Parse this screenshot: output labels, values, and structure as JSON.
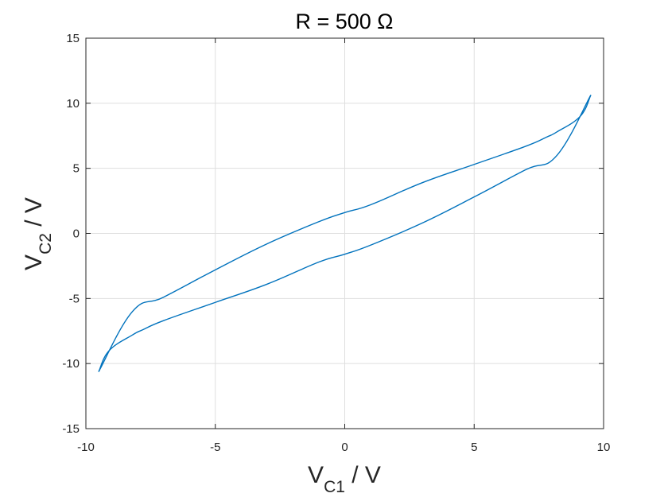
{
  "chart_data": {
    "type": "line",
    "title": "R = 500 Ω",
    "xlabel": {
      "main": "V",
      "sub": "C1",
      "suffix": " / V"
    },
    "ylabel": {
      "main": "V",
      "sub": "C2",
      "suffix": " / V"
    },
    "xlim": [
      -10,
      10
    ],
    "ylim": [
      -15,
      15
    ],
    "xticks": [
      -10,
      -5,
      0,
      5,
      10
    ],
    "yticks": [
      -15,
      -10,
      -5,
      0,
      5,
      10,
      15
    ],
    "xtick_labels": [
      "-10",
      "-5",
      "0",
      "5",
      "10"
    ],
    "ytick_labels": [
      "-15",
      "-10",
      "-5",
      "0",
      "5",
      "10",
      "15"
    ],
    "grid": true,
    "line_color": "#0072bd",
    "series": [
      {
        "x": [
          9.5,
          8.2,
          7.0,
          5.0,
          3.0,
          1.0,
          0.0,
          -1.0,
          -3.0,
          -5.0,
          -7.0,
          -7.8,
          -8.2,
          -9.1,
          -9.5
        ],
        "y": [
          10.6,
          6.0,
          4.9,
          2.8,
          0.8,
          -0.9,
          -1.6,
          -2.2,
          -3.9,
          -5.3,
          -6.7,
          -7.4,
          -7.8,
          -9.0,
          -10.6
        ]
      },
      {
        "x": [
          -9.5,
          -8.2,
          -7.0,
          -5.0,
          -3.0,
          -1.0,
          0.0,
          1.0,
          3.0,
          5.0,
          7.0,
          7.8,
          8.2,
          9.1,
          9.5
        ],
        "y": [
          -10.6,
          -6.0,
          -4.9,
          -2.8,
          -0.8,
          0.9,
          1.6,
          2.2,
          3.9,
          5.3,
          6.7,
          7.4,
          7.8,
          9.0,
          10.6
        ]
      }
    ]
  }
}
